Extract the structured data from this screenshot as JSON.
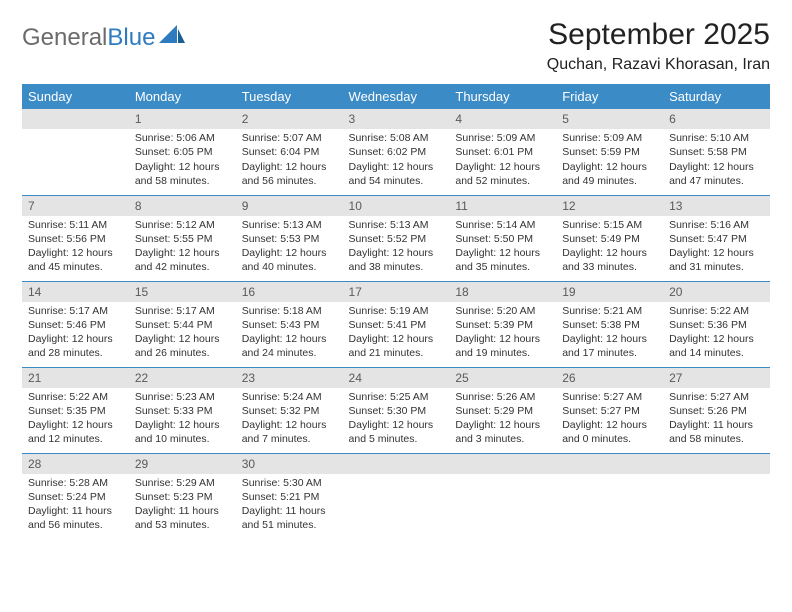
{
  "logo": {
    "text1": "General",
    "text2": "Blue"
  },
  "title": "September 2025",
  "location": "Quchan, Razavi Khorasan, Iran",
  "header_bg": "#3b8bc7",
  "daynum_bg": "#e4e4e4",
  "daylabels": [
    "Sunday",
    "Monday",
    "Tuesday",
    "Wednesday",
    "Thursday",
    "Friday",
    "Saturday"
  ],
  "weeks": [
    [
      {
        "n": "",
        "sr": "",
        "ss": "",
        "dl": ""
      },
      {
        "n": "1",
        "sr": "Sunrise: 5:06 AM",
        "ss": "Sunset: 6:05 PM",
        "dl": "Daylight: 12 hours and 58 minutes."
      },
      {
        "n": "2",
        "sr": "Sunrise: 5:07 AM",
        "ss": "Sunset: 6:04 PM",
        "dl": "Daylight: 12 hours and 56 minutes."
      },
      {
        "n": "3",
        "sr": "Sunrise: 5:08 AM",
        "ss": "Sunset: 6:02 PM",
        "dl": "Daylight: 12 hours and 54 minutes."
      },
      {
        "n": "4",
        "sr": "Sunrise: 5:09 AM",
        "ss": "Sunset: 6:01 PM",
        "dl": "Daylight: 12 hours and 52 minutes."
      },
      {
        "n": "5",
        "sr": "Sunrise: 5:09 AM",
        "ss": "Sunset: 5:59 PM",
        "dl": "Daylight: 12 hours and 49 minutes."
      },
      {
        "n": "6",
        "sr": "Sunrise: 5:10 AM",
        "ss": "Sunset: 5:58 PM",
        "dl": "Daylight: 12 hours and 47 minutes."
      }
    ],
    [
      {
        "n": "7",
        "sr": "Sunrise: 5:11 AM",
        "ss": "Sunset: 5:56 PM",
        "dl": "Daylight: 12 hours and 45 minutes."
      },
      {
        "n": "8",
        "sr": "Sunrise: 5:12 AM",
        "ss": "Sunset: 5:55 PM",
        "dl": "Daylight: 12 hours and 42 minutes."
      },
      {
        "n": "9",
        "sr": "Sunrise: 5:13 AM",
        "ss": "Sunset: 5:53 PM",
        "dl": "Daylight: 12 hours and 40 minutes."
      },
      {
        "n": "10",
        "sr": "Sunrise: 5:13 AM",
        "ss": "Sunset: 5:52 PM",
        "dl": "Daylight: 12 hours and 38 minutes."
      },
      {
        "n": "11",
        "sr": "Sunrise: 5:14 AM",
        "ss": "Sunset: 5:50 PM",
        "dl": "Daylight: 12 hours and 35 minutes."
      },
      {
        "n": "12",
        "sr": "Sunrise: 5:15 AM",
        "ss": "Sunset: 5:49 PM",
        "dl": "Daylight: 12 hours and 33 minutes."
      },
      {
        "n": "13",
        "sr": "Sunrise: 5:16 AM",
        "ss": "Sunset: 5:47 PM",
        "dl": "Daylight: 12 hours and 31 minutes."
      }
    ],
    [
      {
        "n": "14",
        "sr": "Sunrise: 5:17 AM",
        "ss": "Sunset: 5:46 PM",
        "dl": "Daylight: 12 hours and 28 minutes."
      },
      {
        "n": "15",
        "sr": "Sunrise: 5:17 AM",
        "ss": "Sunset: 5:44 PM",
        "dl": "Daylight: 12 hours and 26 minutes."
      },
      {
        "n": "16",
        "sr": "Sunrise: 5:18 AM",
        "ss": "Sunset: 5:43 PM",
        "dl": "Daylight: 12 hours and 24 minutes."
      },
      {
        "n": "17",
        "sr": "Sunrise: 5:19 AM",
        "ss": "Sunset: 5:41 PM",
        "dl": "Daylight: 12 hours and 21 minutes."
      },
      {
        "n": "18",
        "sr": "Sunrise: 5:20 AM",
        "ss": "Sunset: 5:39 PM",
        "dl": "Daylight: 12 hours and 19 minutes."
      },
      {
        "n": "19",
        "sr": "Sunrise: 5:21 AM",
        "ss": "Sunset: 5:38 PM",
        "dl": "Daylight: 12 hours and 17 minutes."
      },
      {
        "n": "20",
        "sr": "Sunrise: 5:22 AM",
        "ss": "Sunset: 5:36 PM",
        "dl": "Daylight: 12 hours and 14 minutes."
      }
    ],
    [
      {
        "n": "21",
        "sr": "Sunrise: 5:22 AM",
        "ss": "Sunset: 5:35 PM",
        "dl": "Daylight: 12 hours and 12 minutes."
      },
      {
        "n": "22",
        "sr": "Sunrise: 5:23 AM",
        "ss": "Sunset: 5:33 PM",
        "dl": "Daylight: 12 hours and 10 minutes."
      },
      {
        "n": "23",
        "sr": "Sunrise: 5:24 AM",
        "ss": "Sunset: 5:32 PM",
        "dl": "Daylight: 12 hours and 7 minutes."
      },
      {
        "n": "24",
        "sr": "Sunrise: 5:25 AM",
        "ss": "Sunset: 5:30 PM",
        "dl": "Daylight: 12 hours and 5 minutes."
      },
      {
        "n": "25",
        "sr": "Sunrise: 5:26 AM",
        "ss": "Sunset: 5:29 PM",
        "dl": "Daylight: 12 hours and 3 minutes."
      },
      {
        "n": "26",
        "sr": "Sunrise: 5:27 AM",
        "ss": "Sunset: 5:27 PM",
        "dl": "Daylight: 12 hours and 0 minutes."
      },
      {
        "n": "27",
        "sr": "Sunrise: 5:27 AM",
        "ss": "Sunset: 5:26 PM",
        "dl": "Daylight: 11 hours and 58 minutes."
      }
    ],
    [
      {
        "n": "28",
        "sr": "Sunrise: 5:28 AM",
        "ss": "Sunset: 5:24 PM",
        "dl": "Daylight: 11 hours and 56 minutes."
      },
      {
        "n": "29",
        "sr": "Sunrise: 5:29 AM",
        "ss": "Sunset: 5:23 PM",
        "dl": "Daylight: 11 hours and 53 minutes."
      },
      {
        "n": "30",
        "sr": "Sunrise: 5:30 AM",
        "ss": "Sunset: 5:21 PM",
        "dl": "Daylight: 11 hours and 51 minutes."
      },
      {
        "n": "",
        "sr": "",
        "ss": "",
        "dl": ""
      },
      {
        "n": "",
        "sr": "",
        "ss": "",
        "dl": ""
      },
      {
        "n": "",
        "sr": "",
        "ss": "",
        "dl": ""
      },
      {
        "n": "",
        "sr": "",
        "ss": "",
        "dl": ""
      }
    ]
  ]
}
